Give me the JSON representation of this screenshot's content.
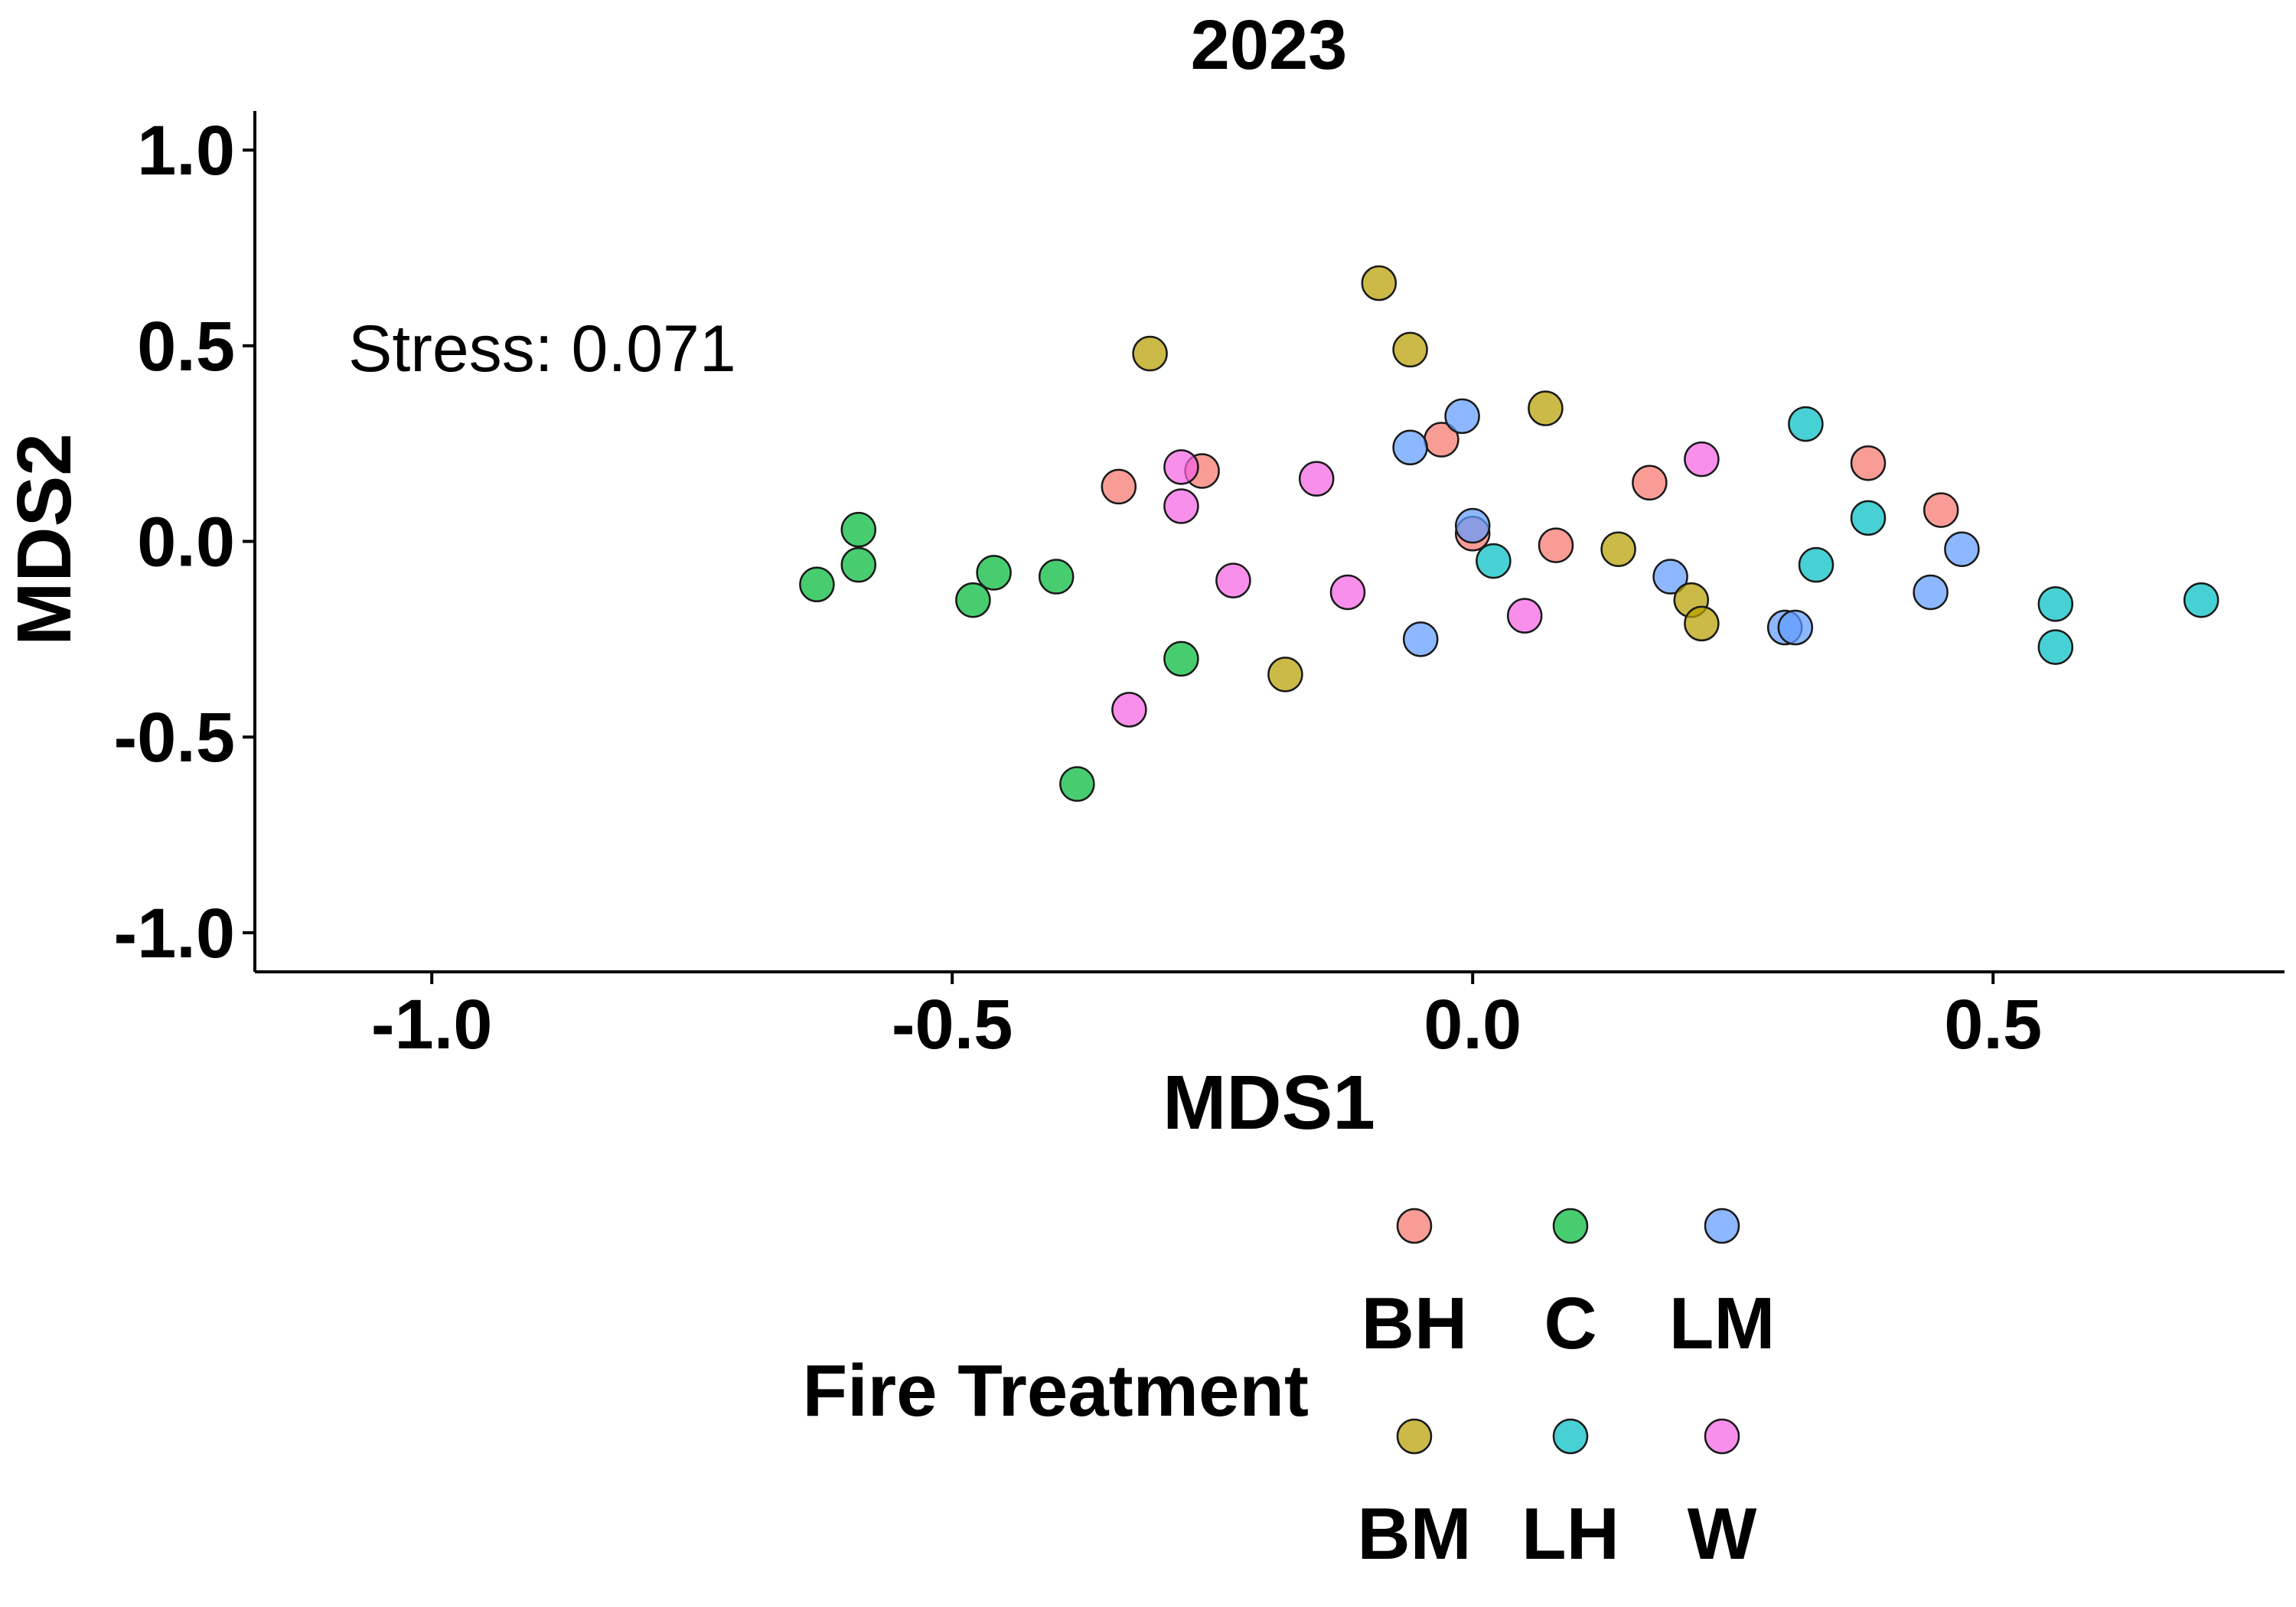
{
  "chart_data": {
    "type": "scatter",
    "title": "2023",
    "xlabel": "MDS1",
    "ylabel": "MDS2",
    "xlim": [
      -1.17,
      0.78
    ],
    "ylim": [
      -1.1,
      1.1
    ],
    "xticks": [
      -1.0,
      -0.5,
      0.0,
      0.5
    ],
    "xtick_labels": [
      "-1.0",
      "-0.5",
      "0.0",
      "0.5"
    ],
    "yticks": [
      -1.0,
      -0.5,
      0.0,
      0.5,
      1.0
    ],
    "ytick_labels": [
      "-1.0",
      "-0.5",
      "0.0",
      "0.5",
      "1.0"
    ],
    "grid": false,
    "annotation": "Stress: 0.071",
    "legend": {
      "title": "Fire Treatment",
      "placement": "bottom"
    },
    "series": [
      {
        "name": "BH",
        "color": "#F8766D",
        "points": [
          [
            -0.34,
            0.14
          ],
          [
            -0.26,
            0.18
          ],
          [
            -0.03,
            0.26
          ],
          [
            0.0,
            0.02
          ],
          [
            0.08,
            -0.01
          ],
          [
            0.17,
            0.15
          ],
          [
            0.38,
            0.2
          ],
          [
            0.45,
            0.08
          ]
        ]
      },
      {
        "name": "C",
        "color": "#00BA38",
        "points": [
          [
            -0.63,
            -0.11
          ],
          [
            -0.59,
            0.03
          ],
          [
            -0.59,
            -0.06
          ],
          [
            -0.48,
            -0.15
          ],
          [
            -0.46,
            -0.08
          ],
          [
            -0.4,
            -0.09
          ],
          [
            -0.28,
            -0.3
          ],
          [
            -0.38,
            -0.62
          ]
        ]
      },
      {
        "name": "LM",
        "color": "#619CFF",
        "points": [
          [
            -0.06,
            0.24
          ],
          [
            -0.01,
            0.32
          ],
          [
            0.0,
            0.04
          ],
          [
            -0.05,
            -0.25
          ],
          [
            0.19,
            -0.09
          ],
          [
            0.3,
            -0.22
          ],
          [
            0.31,
            -0.22
          ],
          [
            0.44,
            -0.13
          ],
          [
            0.47,
            -0.02
          ]
        ]
      },
      {
        "name": "BM",
        "color": "#B79F00",
        "points": [
          [
            -0.31,
            0.48
          ],
          [
            -0.09,
            0.66
          ],
          [
            -0.06,
            0.49
          ],
          [
            0.07,
            0.34
          ],
          [
            0.14,
            -0.02
          ],
          [
            0.21,
            -0.15
          ],
          [
            0.22,
            -0.21
          ],
          [
            -0.18,
            -0.34
          ]
        ]
      },
      {
        "name": "LH",
        "color": "#00BFC4",
        "points": [
          [
            0.02,
            -0.05
          ],
          [
            0.32,
            0.3
          ],
          [
            0.38,
            0.06
          ],
          [
            0.33,
            -0.06
          ],
          [
            0.56,
            -0.16
          ],
          [
            0.56,
            -0.27
          ],
          [
            0.7,
            -0.15
          ]
        ]
      },
      {
        "name": "W",
        "color": "#F564E3",
        "points": [
          [
            -0.28,
            0.19
          ],
          [
            -0.28,
            0.09
          ],
          [
            -0.23,
            -0.1
          ],
          [
            -0.15,
            0.16
          ],
          [
            -0.12,
            -0.13
          ],
          [
            -0.33,
            -0.43
          ],
          [
            0.05,
            -0.19
          ],
          [
            0.22,
            0.21
          ]
        ]
      }
    ]
  }
}
